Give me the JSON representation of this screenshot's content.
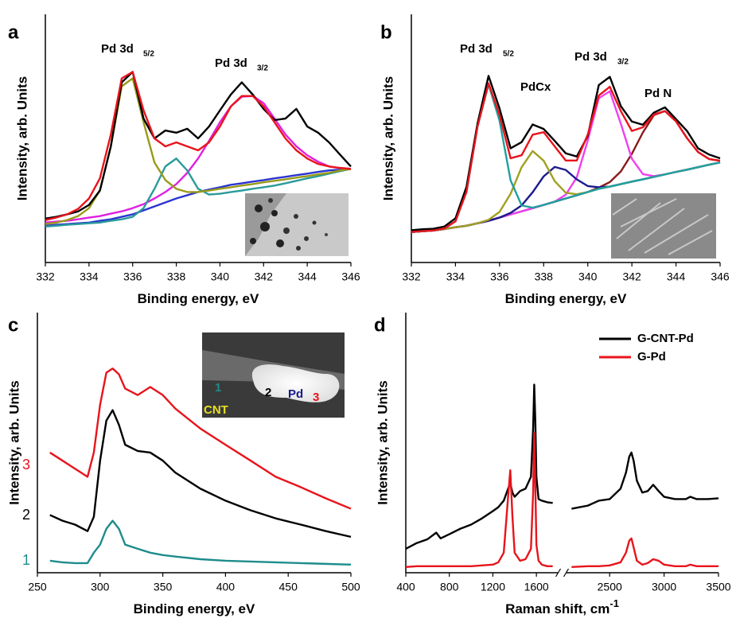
{
  "chart_data": [
    {
      "type": "line",
      "label": "a",
      "xlabel": "Binding energy, eV",
      "ylabel": "Intensity, arb. Units",
      "x": [
        332,
        332.5,
        333,
        333.5,
        334,
        334.5,
        335,
        335.5,
        336,
        336.5,
        337,
        337.5,
        338,
        338.5,
        339,
        339.5,
        340,
        340.5,
        341,
        341.5,
        342,
        342.5,
        343,
        343.5,
        344,
        344.5,
        345,
        345.5,
        346
      ],
      "xlim": [
        332,
        346
      ],
      "xticks": [
        332,
        334,
        336,
        338,
        340,
        342,
        344,
        346
      ],
      "ylim": [
        0,
        100
      ],
      "series": [
        {
          "color": "#2a35d0",
          "values": [
            14.8,
            15.2,
            15.5,
            15.8,
            16.1,
            16.8,
            17.4,
            18.4,
            19.4,
            21,
            22.6,
            24.2,
            25.8,
            27.1,
            28.4,
            29.4,
            30.3,
            31.3,
            31.9,
            32.6,
            33.2,
            33.9,
            34.5,
            35.2,
            35.8,
            36.5,
            37.1,
            37.4,
            37.7
          ]
        },
        {
          "color": "#e020e0",
          "values": [
            16.1,
            16.5,
            16.8,
            17.4,
            18.1,
            18.7,
            19.7,
            20.6,
            21.9,
            23.5,
            25.8,
            28.4,
            31.6,
            36.1,
            41.9,
            49,
            56.5,
            62.9,
            66.8,
            67.1,
            64.2,
            58,
            51.6,
            46.8,
            43.2,
            40.6,
            38.7,
            38.1,
            37.7
          ]
        },
        {
          "color": "#2a9a9a",
          "values": [
            14.5,
            14.8,
            15.2,
            15.5,
            15.8,
            16.1,
            16.8,
            17.4,
            18.4,
            21.9,
            29.7,
            38.7,
            41.9,
            37.1,
            29.7,
            27.4,
            27.7,
            28.4,
            29,
            29.7,
            30.3,
            31,
            31.9,
            32.9,
            33.9,
            34.8,
            35.8,
            36.8,
            37.7
          ]
        },
        {
          "color": "#9a9a1a",
          "values": [
            15.5,
            16.1,
            17.1,
            18.7,
            21.9,
            29,
            46.8,
            71,
            74.2,
            56.5,
            40.3,
            33.2,
            29.7,
            28.4,
            28.4,
            29,
            29.7,
            30.3,
            31,
            31.6,
            32.3,
            32.9,
            33.5,
            34.2,
            34.8,
            35.5,
            36.1,
            37.1,
            37.7
          ]
        },
        {
          "color": "#000000",
          "values": [
            17.7,
            18.4,
            19.4,
            20.6,
            23.2,
            29,
            46.8,
            72.6,
            76.8,
            58,
            50,
            53.2,
            52.3,
            53.9,
            50,
            54.8,
            61.3,
            67.7,
            72.6,
            67.7,
            61.9,
            57.4,
            58,
            61.9,
            54.8,
            52.3,
            48.4,
            43.5,
            38.7
          ]
        },
        {
          "color": "#e8141c",
          "values": [
            17.1,
            18.1,
            19.4,
            21.6,
            25.8,
            33.9,
            51.6,
            74.2,
            76.8,
            61.3,
            50,
            46.8,
            48.4,
            46.8,
            45.2,
            48.4,
            54.8,
            62.9,
            67.1,
            67.1,
            62.9,
            56.5,
            50,
            45.2,
            41.9,
            39.7,
            38.7,
            38.1,
            37.7
          ]
        }
      ],
      "annotations": [
        {
          "text": "Pd 3d"
        },
        {
          "text": "5/2"
        },
        {
          "text": "Pd 3d"
        },
        {
          "text": "3/2"
        }
      ]
    },
    {
      "type": "line",
      "label": "b",
      "xlabel": "Binding energy, eV",
      "ylabel": "Intensity, arb. Units",
      "x": [
        332,
        332.5,
        333,
        333.5,
        334,
        334.5,
        335,
        335.5,
        336,
        336.5,
        337,
        337.5,
        338,
        338.5,
        339,
        339.5,
        340,
        340.5,
        341,
        341.5,
        342,
        342.5,
        343,
        343.5,
        344,
        344.5,
        345,
        345.5,
        346
      ],
      "xlim": [
        332,
        346
      ],
      "xticks": [
        332,
        334,
        336,
        338,
        340,
        342,
        344,
        346
      ],
      "ylim": [
        0,
        100
      ],
      "series": [
        {
          "color": "#3040e0",
          "values": [
            12.3,
            12.6,
            12.9,
            13.5,
            14.2,
            14.8,
            15.8,
            16.8,
            18.1,
            19.4,
            20.6,
            21.9,
            23.2,
            24.5,
            25.8,
            27.1,
            28.4,
            29.7,
            30.6,
            31.6,
            32.6,
            33.5,
            34.5,
            35.5,
            36.5,
            37.4,
            38.4,
            39.4,
            40.3
          ]
        },
        {
          "color": "#8b1a1a",
          "values": [
            12.3,
            12.6,
            12.9,
            13.5,
            14.2,
            14.8,
            15.8,
            16.8,
            18.1,
            19.4,
            20.6,
            21.9,
            23.2,
            24.5,
            25.8,
            27.1,
            28.4,
            30.2,
            32.4,
            36.7,
            43.8,
            52.4,
            59.4,
            61,
            56.9,
            50.1,
            44.5,
            41.7,
            41
          ]
        },
        {
          "color": "#f040f0",
          "values": [
            12.3,
            12.6,
            12.9,
            13.5,
            14.2,
            14.8,
            15.8,
            16.8,
            18.1,
            19.4,
            20.6,
            21.9,
            23.2,
            24.5,
            27.3,
            34.3,
            49.2,
            66.2,
            69,
            55.9,
            41.8,
            35.6,
            34.8,
            35.5,
            36.5,
            37.4,
            38.4,
            39.4,
            40.3
          ]
        },
        {
          "color": "#1a1a8c",
          "values": [
            12.3,
            12.6,
            12.9,
            13.5,
            14.2,
            14.8,
            15.8,
            16.8,
            18.1,
            20,
            23,
            28.3,
            34.7,
            38.5,
            37.3,
            33.5,
            30.8,
            30.3,
            30.6,
            31.6,
            32.6,
            33.5,
            34.5,
            35.5,
            36.5,
            37.4,
            38.4,
            39.4,
            40.3
          ]
        },
        {
          "color": "#a0a020",
          "values": [
            12.3,
            12.6,
            12.9,
            13.5,
            14.2,
            14.8,
            15.8,
            17.2,
            20.4,
            27.7,
            38.4,
            44.9,
            41,
            32.8,
            28.1,
            27.5,
            28.4,
            29.7,
            30.6,
            31.6,
            32.6,
            33.5,
            34.5,
            35.5,
            36.5,
            37.4,
            38.4,
            39.4,
            40.3
          ]
        },
        {
          "color": "#20a0a0",
          "values": [
            12.3,
            12.6,
            12.9,
            13.7,
            16.6,
            28.5,
            54.8,
            71.8,
            57.1,
            33.1,
            23,
            22.1,
            23.2,
            24.5,
            25.8,
            27.1,
            28.4,
            29.7,
            30.6,
            31.6,
            32.6,
            33.5,
            34.5,
            35.5,
            36.5,
            37.4,
            38.4,
            39.4,
            40.3
          ]
        },
        {
          "color": "#000000",
          "values": [
            13,
            13.4,
            13.6,
            14.5,
            17.8,
            30.5,
            56,
            75.2,
            62,
            46,
            48.5,
            55.6,
            53.8,
            49,
            44,
            42.7,
            51,
            71.5,
            74.8,
            63,
            56.8,
            55.5,
            60.4,
            62.5,
            57.8,
            53,
            46,
            43.5,
            42
          ]
        },
        {
          "color": "#e8141c",
          "values": [
            12.3,
            12.6,
            12.9,
            13.7,
            16.6,
            28.5,
            54.8,
            72.2,
            59.4,
            42,
            43.2,
            51.5,
            52.5,
            46.8,
            41.1,
            41.1,
            51.6,
            67.3,
            70.8,
            61,
            53,
            54.5,
            59.7,
            61,
            56.9,
            50.1,
            44.5,
            41.7,
            41
          ]
        }
      ],
      "annotations": [
        {
          "text": "Pd 3d"
        },
        {
          "text": "5/2"
        },
        {
          "text": "PdCx"
        },
        {
          "text": "Pd 3d"
        },
        {
          "text": "3/2"
        },
        {
          "text": "Pd N"
        }
      ]
    },
    {
      "type": "line",
      "label": "c",
      "xlabel": "Binding energy, eV",
      "ylabel": "Intensity, arb. Units",
      "x": [
        260,
        270,
        280,
        290,
        295,
        300,
        305,
        310,
        315,
        320,
        330,
        340,
        350,
        360,
        380,
        400,
        420,
        440,
        460,
        480,
        500
      ],
      "xlim": [
        250,
        500
      ],
      "xticks": [
        250,
        300,
        350,
        400,
        450,
        500
      ],
      "ylim": [
        0,
        100
      ],
      "series": [
        {
          "name": "3",
          "color": "#e8141c",
          "values": [
            46.2,
            43.1,
            40,
            36.9,
            46.2,
            64.6,
            76.9,
            78.5,
            76.3,
            70.8,
            68.3,
            71.4,
            68.3,
            63.1,
            55.4,
            49.2,
            43.1,
            36.9,
            32.9,
            28.6,
            24.6
          ]
        },
        {
          "name": "2",
          "color": "#000000",
          "values": [
            22.2,
            20,
            18.5,
            16,
            21.5,
            43.1,
            58.5,
            62.5,
            56.9,
            49.2,
            46.8,
            46.2,
            43.1,
            38.5,
            32.3,
            27.7,
            24,
            20.9,
            18.5,
            16,
            13.8
          ]
        },
        {
          "name": "1",
          "color": "#1e8c8c",
          "values": [
            4.6,
            4,
            3.7,
            3.7,
            7.7,
            10.8,
            16.9,
            20,
            16.9,
            10.8,
            9.2,
            7.7,
            6.8,
            6.2,
            5.2,
            4.6,
            4.3,
            4,
            3.7,
            3.4,
            3.1
          ]
        }
      ],
      "annotations": [
        {
          "text": "1",
          "color": "#1e8c8c"
        },
        {
          "text": "2",
          "color": "#000000"
        },
        {
          "text": "Pd",
          "color": "#1a1a8c"
        },
        {
          "text": "3",
          "color": "#e8141c"
        },
        {
          "text": "CNT",
          "color": "#e6e020"
        }
      ]
    },
    {
      "type": "line",
      "label": "d",
      "xlabel": "Raman shift, cm",
      "xlabel_sup": "-1",
      "ylabel": "Intensity, arb. Units",
      "x": [
        400,
        500,
        600,
        680,
        720,
        800,
        900,
        1000,
        1100,
        1200,
        1250,
        1300,
        1340,
        1360,
        1380,
        1400,
        1450,
        1500,
        1550,
        1570,
        1580,
        1590,
        1600,
        1620,
        1650,
        1700,
        1750,
        2150,
        2300,
        2400,
        2500,
        2600,
        2650,
        2680,
        2700,
        2720,
        2750,
        2800,
        2850,
        2900,
        2950,
        3000,
        3100,
        3200,
        3240,
        3300,
        3400,
        3500
      ],
      "xlim": [
        400,
        3500
      ],
      "xbreak": [
        1800,
        2100
      ],
      "xticks": [
        400,
        800,
        1200,
        1600,
        2500,
        3000,
        3500
      ],
      "ylim": [
        0,
        100
      ],
      "legend": "upper right",
      "series": [
        {
          "name": "G-CNT-Pd",
          "color": "#000000",
          "values": [
            9.2,
            11.4,
            12.9,
            15.4,
            13.2,
            14.8,
            16.9,
            18.5,
            20.9,
            23.7,
            25.2,
            27.7,
            32.3,
            34.5,
            30.8,
            29.2,
            31.4,
            32.3,
            36.9,
            55.4,
            72.3,
            58.5,
            36.9,
            28.3,
            27.7,
            27.1,
            26.8,
            24.6,
            25.8,
            27.7,
            28.3,
            32.3,
            38.5,
            44.6,
            46.2,
            43.1,
            35.4,
            30.8,
            31.4,
            33.8,
            31.4,
            29.2,
            28.3,
            28.3,
            29.2,
            28.3,
            28.3,
            28.6
          ]
        },
        {
          "name": "G-Pd",
          "color": "#e8141c",
          "values": [
            2.2,
            2.5,
            2.5,
            2.5,
            2.5,
            2.5,
            2.5,
            2.5,
            2.8,
            3.1,
            4,
            7.7,
            29.2,
            39.4,
            21.5,
            7.7,
            4.6,
            5.2,
            9.2,
            30.8,
            53.8,
            33.8,
            10.8,
            4.6,
            3.1,
            2.5,
            2.5,
            2.2,
            2.5,
            2.5,
            2.8,
            4,
            7.7,
            12.3,
            13.2,
            9.8,
            4.6,
            3.1,
            3.7,
            5.2,
            4.6,
            3.1,
            2.5,
            2.5,
            3.1,
            2.5,
            2.5,
            2.5
          ]
        }
      ]
    }
  ]
}
